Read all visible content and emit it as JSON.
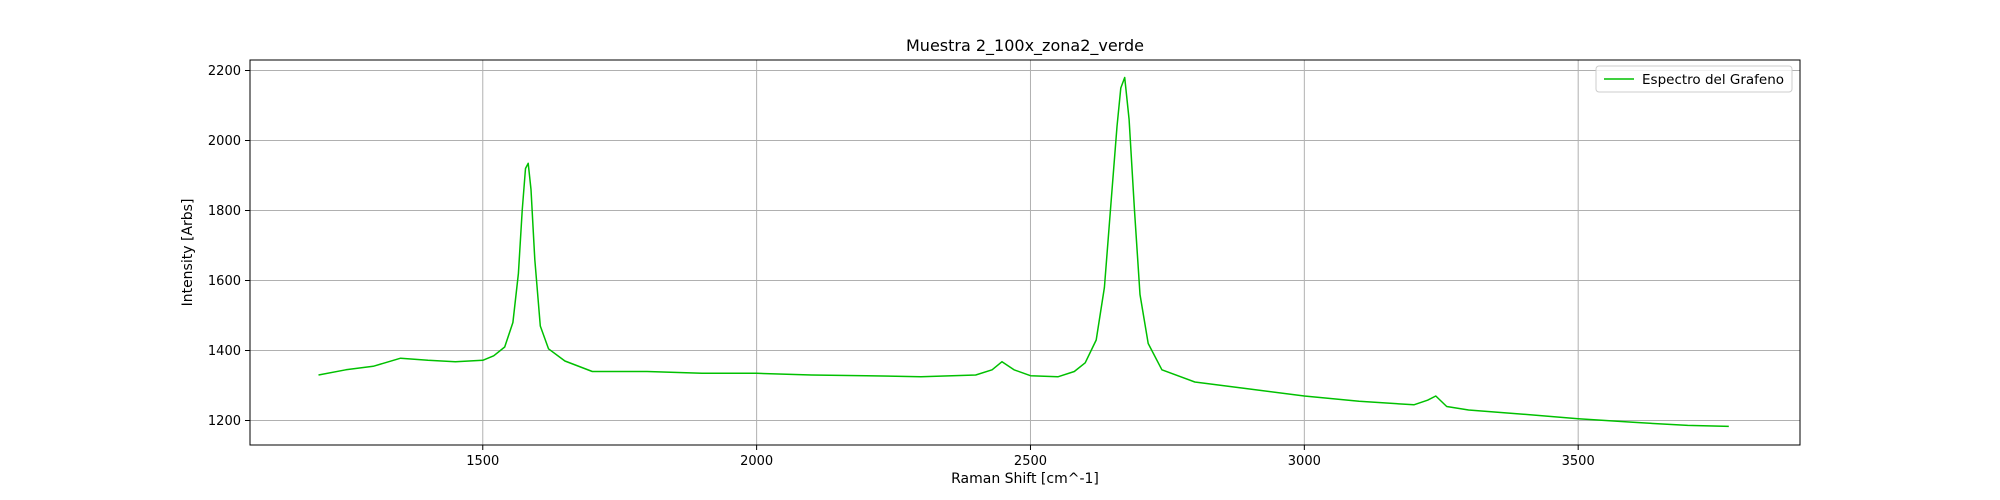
{
  "chart_data": {
    "type": "line",
    "title": "Muestra 2_100x_zona2_verde",
    "xlabel": "Raman Shift [cm^-1]",
    "ylabel": "Intensity [Arbs]",
    "xlim": [
      1075,
      3905
    ],
    "ylim": [
      1130,
      2230
    ],
    "xticks": [
      1500,
      2000,
      2500,
      3000,
      3500
    ],
    "yticks": [
      1200,
      1400,
      1600,
      1800,
      2000,
      2200
    ],
    "grid": true,
    "legend_position": "top-right",
    "series": [
      {
        "name": "Espectro del Grafeno",
        "color": "#00c000",
        "x": [
          1200,
          1250,
          1300,
          1350,
          1400,
          1450,
          1500,
          1520,
          1540,
          1555,
          1565,
          1572,
          1578,
          1583,
          1588,
          1595,
          1605,
          1620,
          1650,
          1700,
          1800,
          1900,
          2000,
          2100,
          2200,
          2300,
          2400,
          2430,
          2448,
          2470,
          2500,
          2550,
          2580,
          2600,
          2620,
          2635,
          2648,
          2658,
          2665,
          2672,
          2680,
          2690,
          2700,
          2715,
          2740,
          2800,
          2900,
          3000,
          3100,
          3200,
          3225,
          3240,
          3260,
          3300,
          3400,
          3500,
          3600,
          3700,
          3775
        ],
        "y": [
          1330,
          1345,
          1355,
          1378,
          1372,
          1368,
          1372,
          1385,
          1410,
          1480,
          1620,
          1800,
          1920,
          1935,
          1860,
          1660,
          1470,
          1405,
          1370,
          1340,
          1340,
          1335,
          1335,
          1330,
          1328,
          1325,
          1330,
          1345,
          1368,
          1345,
          1328,
          1325,
          1340,
          1365,
          1430,
          1580,
          1840,
          2040,
          2150,
          2180,
          2060,
          1800,
          1560,
          1420,
          1345,
          1310,
          1290,
          1270,
          1255,
          1245,
          1258,
          1270,
          1240,
          1230,
          1218,
          1205,
          1195,
          1186,
          1183
        ]
      }
    ]
  }
}
